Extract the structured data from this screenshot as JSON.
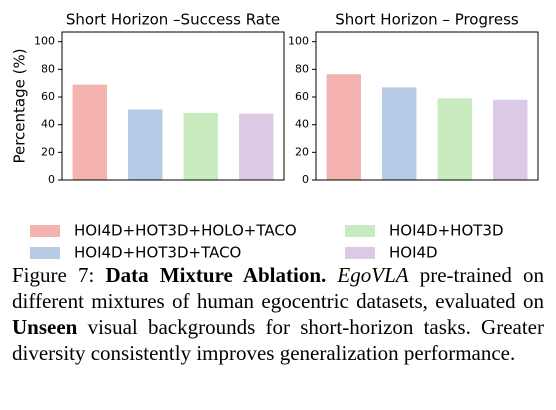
{
  "chart_data": [
    {
      "type": "bar",
      "title": "Short Horizon –Success Rate",
      "ylabel": "Percentage (%)",
      "values": [
        69,
        51,
        48.5,
        48
      ],
      "ylim": [
        0,
        107
      ],
      "yticks": [
        0,
        20,
        40,
        60,
        80,
        100
      ]
    },
    {
      "type": "bar",
      "title": "Short Horizon – Progress",
      "values": [
        76.5,
        67,
        59,
        58
      ],
      "ylim": [
        0,
        107
      ],
      "yticks": [
        0,
        20,
        40,
        60,
        80,
        100
      ]
    }
  ],
  "legend": {
    "series": [
      {
        "name": "HOI4D+HOT3D+HOLO+TACO",
        "color": "#f4b3af"
      },
      {
        "name": "HOI4D+HOT3D+TACO",
        "color": "#b6cbe5"
      },
      {
        "name": "HOI4D+HOT3D",
        "color": "#c8ecbf"
      },
      {
        "name": "HOI4D",
        "color": "#dcc9e6"
      }
    ]
  },
  "caption": [
    "Figure 7: ",
    "Data Mixture Ablation.",
    " ",
    "EgoVLA",
    " pre-trained on different mixtures of human egocentric datasets, evaluated on ",
    "Unseen",
    " visual backgrounds for short-horizon tasks. Greater diversity consistently improves generalization performance."
  ]
}
